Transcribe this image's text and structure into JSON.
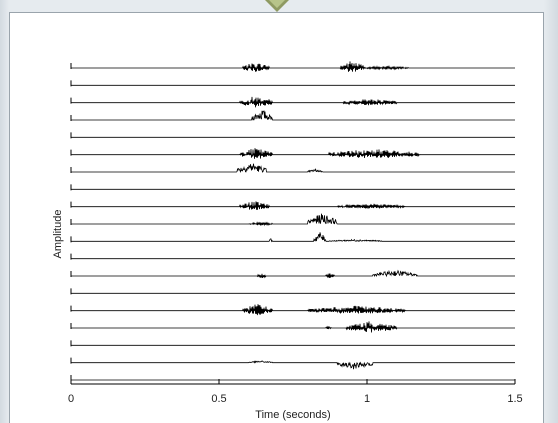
{
  "chart_data": {
    "type": "line",
    "title": "",
    "xlabel": "Time (seconds)",
    "ylabel": "Amplitude",
    "xlim": [
      0,
      1.5
    ],
    "xticks": [
      0,
      0.5,
      1,
      1.5
    ],
    "xtick_labels": [
      "0",
      "0.5",
      "1",
      "1.5"
    ],
    "grid": false,
    "legend": "none",
    "line_color": "#000000",
    "channel_count": 19,
    "series": [
      {
        "bursts": [
          {
            "t0": 0.58,
            "t1": 0.67,
            "a": 6,
            "mode": "both"
          },
          {
            "t0": 0.91,
            "t1": 0.99,
            "a": 8,
            "mode": "both"
          },
          {
            "t0": 0.99,
            "t1": 1.14,
            "a": 2,
            "mode": "both"
          }
        ]
      },
      {
        "bursts": []
      },
      {
        "bursts": [
          {
            "t0": 0.57,
            "t1": 0.68,
            "a": 7,
            "mode": "both"
          },
          {
            "t0": 0.92,
            "t1": 1.1,
            "a": 4,
            "mode": "both"
          }
        ]
      },
      {
        "bursts": [
          {
            "t0": 0.61,
            "t1": 0.68,
            "a": 11,
            "mode": "up"
          }
        ]
      },
      {
        "bursts": []
      },
      {
        "bursts": [
          {
            "t0": 0.57,
            "t1": 0.68,
            "a": 7,
            "mode": "both"
          },
          {
            "t0": 0.87,
            "t1": 1.18,
            "a": 6,
            "mode": "both"
          }
        ]
      },
      {
        "bursts": [
          {
            "t0": 0.56,
            "t1": 0.66,
            "a": 10,
            "mode": "up"
          },
          {
            "t0": 0.8,
            "t1": 0.85,
            "a": 3,
            "mode": "up"
          }
        ]
      },
      {
        "bursts": []
      },
      {
        "bursts": [
          {
            "t0": 0.57,
            "t1": 0.67,
            "a": 6,
            "mode": "both"
          },
          {
            "t0": 0.9,
            "t1": 1.13,
            "a": 3,
            "mode": "both"
          }
        ]
      },
      {
        "bursts": [
          {
            "t0": 0.6,
            "t1": 0.68,
            "a": 2,
            "mode": "both"
          },
          {
            "t0": 0.8,
            "t1": 0.9,
            "a": 11,
            "mode": "up"
          }
        ]
      },
      {
        "bursts": [
          {
            "t0": 0.67,
            "t1": 0.68,
            "a": 3,
            "mode": "up"
          },
          {
            "t0": 0.82,
            "t1": 0.86,
            "a": 10,
            "mode": "up"
          },
          {
            "t0": 0.87,
            "t1": 1.05,
            "a": 2,
            "mode": "up"
          }
        ]
      },
      {
        "bursts": []
      },
      {
        "bursts": [
          {
            "t0": 0.63,
            "t1": 0.66,
            "a": 3,
            "mode": "both"
          },
          {
            "t0": 0.86,
            "t1": 0.89,
            "a": 3,
            "mode": "both"
          },
          {
            "t0": 1.02,
            "t1": 1.17,
            "a": 6,
            "mode": "up"
          }
        ]
      },
      {
        "bursts": []
      },
      {
        "bursts": [
          {
            "t0": 0.58,
            "t1": 0.68,
            "a": 7,
            "mode": "both"
          },
          {
            "t0": 0.8,
            "t1": 1.13,
            "a": 5,
            "mode": "both"
          }
        ]
      },
      {
        "bursts": [
          {
            "t0": 0.86,
            "t1": 0.88,
            "a": 2,
            "mode": "both"
          },
          {
            "t0": 0.93,
            "t1": 1.1,
            "a": 7,
            "mode": "both"
          }
        ]
      },
      {
        "bursts": []
      },
      {
        "bursts": [
          {
            "t0": 0.6,
            "t1": 0.68,
            "a": 2,
            "mode": "up"
          },
          {
            "t0": 0.9,
            "t1": 1.02,
            "a": 7,
            "mode": "down"
          }
        ]
      },
      {
        "bursts": []
      }
    ]
  }
}
